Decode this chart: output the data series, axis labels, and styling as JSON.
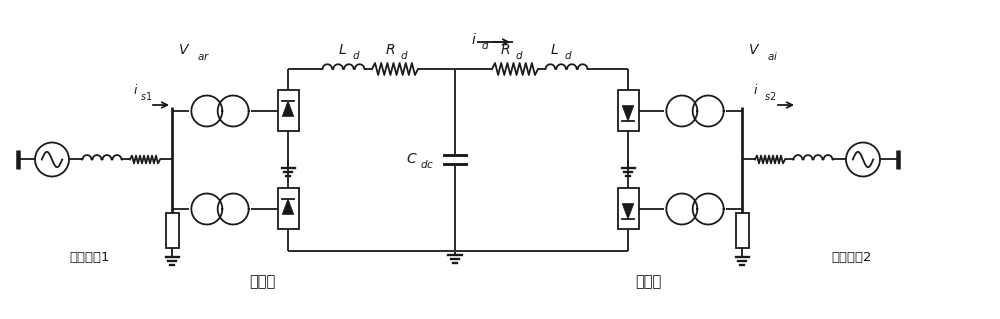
{
  "fig_width": 10.0,
  "fig_height": 3.19,
  "dpi": 100,
  "bg_color": "#ffffff",
  "line_color": "#1a1a1a",
  "lw": 1.3,
  "labels": {
    "rectifier": "整流侧",
    "inverter": "逆变侧",
    "ac_sys1": "交流系统1",
    "ac_sys2": "交流系统2"
  }
}
